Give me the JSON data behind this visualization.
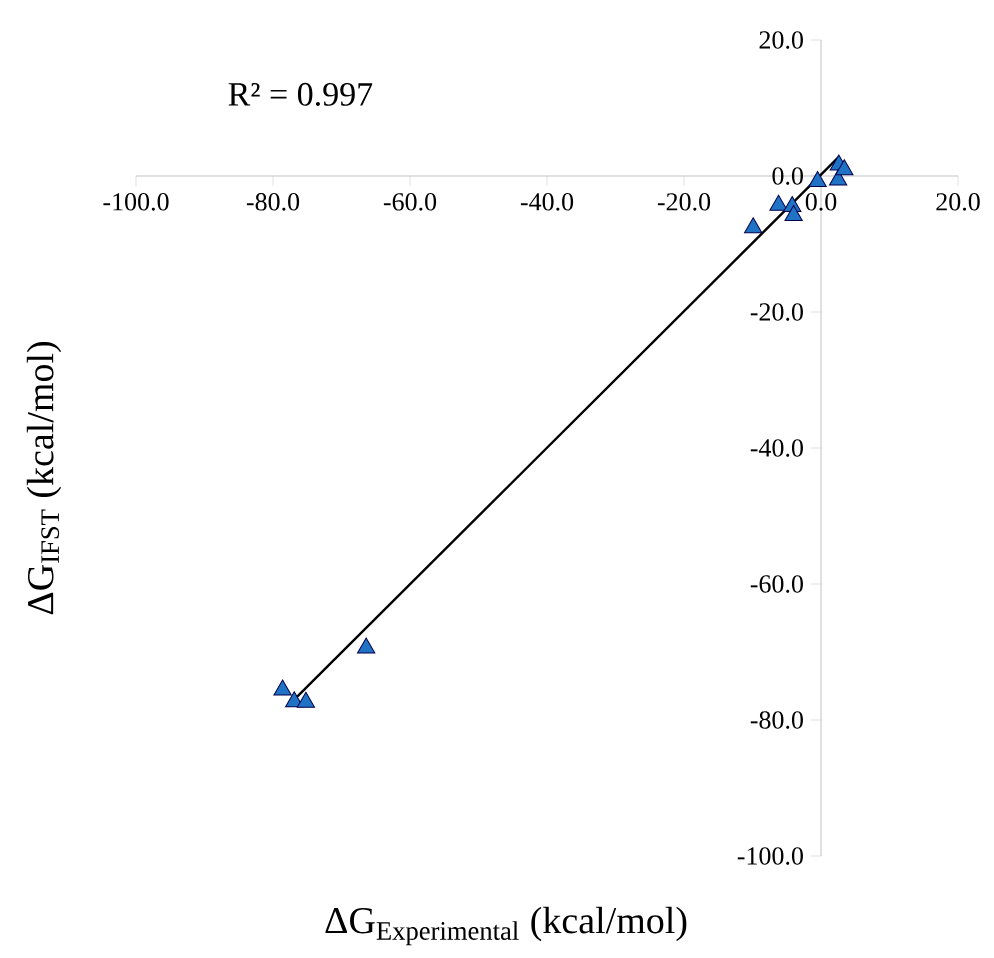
{
  "chart_data": {
    "type": "scatter",
    "xlabel": "\\text{ΔG}_{\\text{Experimental}}\\text{ (kcal/mol)}",
    "ylabel": "\\text{ΔG}_{\\text{IFST}}\\text{ (kcal/mol)}",
    "annotations": [
      "R² = 0.997"
    ],
    "series": [
      {
        "color": "#1f72c4",
        "marker": "triangle",
        "x": [
          -78.6,
          -76.9,
          -75.2,
          -66.4,
          -9.9,
          -6.2,
          -4.2,
          -4.0,
          -0.5,
          2.6,
          2.5,
          3.4
        ],
        "values": [
          -75.6,
          -77.3,
          -77.4,
          -69.4,
          -7.6,
          -4.3,
          -4.5,
          -5.8,
          -0.8,
          1.6,
          -0.6,
          0.9
        ]
      },
      {
        "type": "line",
        "color": "#000000",
        "marker": "none",
        "line_style": "solid",
        "x": [
          -77.9,
          2.6
        ],
        "values": [
          -78.0,
          2.8
        ]
      }
    ],
    "xlim": [
      -100,
      20
    ],
    "ylim": [
      -100,
      20
    ],
    "xticks": [
      {
        "value": -100,
        "label": "-100.0"
      },
      {
        "value": -80,
        "label": "-80.0"
      },
      {
        "value": -60,
        "label": "-60.0"
      },
      {
        "value": -40,
        "label": "-40.0"
      },
      {
        "value": -20,
        "label": "-20.0"
      },
      {
        "value": 0,
        "label": "0.0"
      },
      {
        "value": 20,
        "label": "20.0"
      }
    ],
    "yticks": [
      {
        "value": -100,
        "label": "-100.0"
      },
      {
        "value": -80,
        "label": "-80.0"
      },
      {
        "value": -60,
        "label": "-60.0"
      },
      {
        "value": -40,
        "label": "-40.0"
      },
      {
        "value": -20,
        "label": "-20.0"
      },
      {
        "value": 0,
        "label": "0.0"
      },
      {
        "value": 20,
        "label": "20.0"
      }
    ],
    "grid": false
  }
}
